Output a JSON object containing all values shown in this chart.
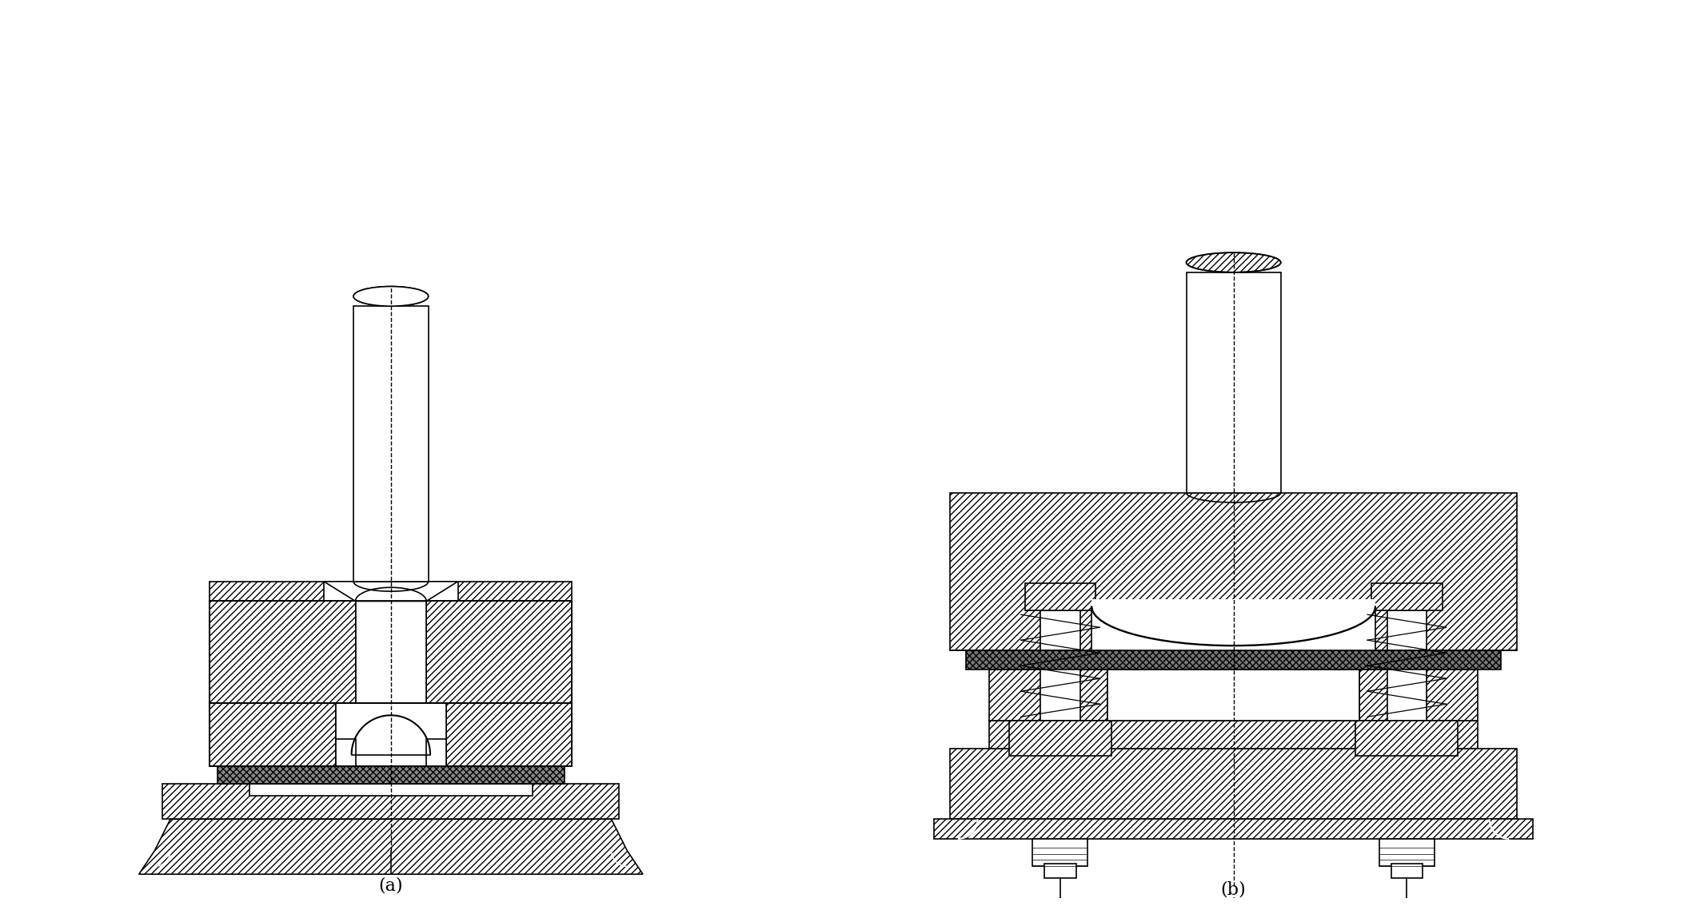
{
  "bg_color": "#ffffff",
  "line_color": "#000000",
  "label_a": "(a)",
  "label_b": "(b)",
  "fig_width": 21.26,
  "fig_height": 11.34,
  "dpi": 100
}
